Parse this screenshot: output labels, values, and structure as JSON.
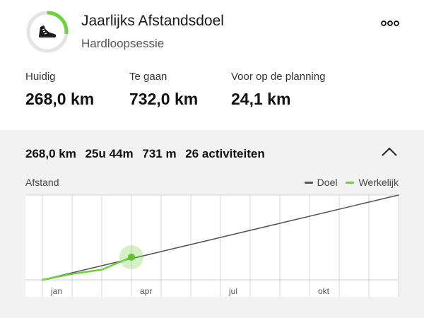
{
  "header": {
    "title": "Jaarlijks Afstandsdoel",
    "subtitle": "Hardloopsessie",
    "icon": "running-shoe-icon",
    "progress_fraction": 0.268,
    "accent_color": "#6dd13c"
  },
  "stats": [
    {
      "label": "Huidig",
      "value": "268,0 km"
    },
    {
      "label": "Te gaan",
      "value": "732,0 km"
    },
    {
      "label": "Voor op de planning",
      "value": "24,1 km"
    }
  ],
  "summary": {
    "distance": "268,0 km",
    "duration": "25u 44m",
    "elevation": "731 m",
    "activities": "26 activiteiten"
  },
  "chart_data": {
    "type": "line",
    "ylabel": "Afstand",
    "x_tick_labels": [
      "jan",
      "apr",
      "jul",
      "okt"
    ],
    "x_months": [
      1,
      12
    ],
    "ylim": [
      0,
      1000
    ],
    "legend": [
      "Doel",
      "Werkelijk"
    ],
    "legend_placement": "top-right",
    "grid": "vertical",
    "series": [
      {
        "name": "Doel",
        "color": "#555555",
        "x": [
          0,
          12
        ],
        "y": [
          0,
          1000
        ]
      },
      {
        "name": "Werkelijk",
        "color": "#6dd13c",
        "x": [
          0,
          1,
          2,
          3.0
        ],
        "y": [
          0,
          70,
          120,
          268
        ]
      }
    ],
    "current_point": {
      "x": 3.0,
      "y": 268
    }
  }
}
